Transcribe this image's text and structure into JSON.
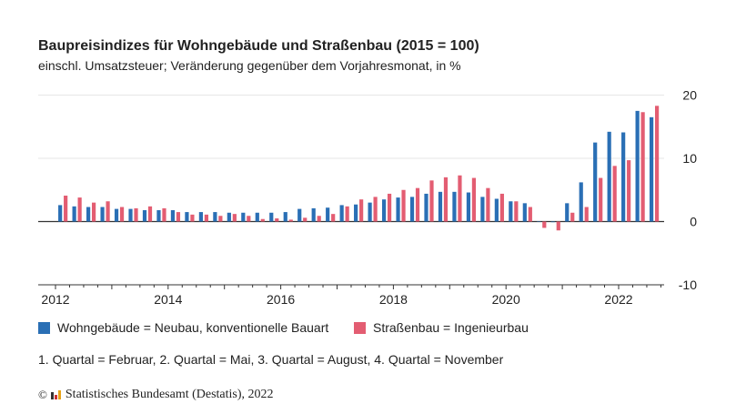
{
  "title": "Baupreisindizes für Wohngebäude und Straßenbau (2015 = 100)",
  "subtitle": "einschl. Umsatzsteuer; Veränderung gegenüber dem Vorjahresmonat, in %",
  "note": "1. Quartal = Februar, 2. Quartal = Mai, 3. Quartal = August, 4. Quartal = November",
  "source": {
    "copyright": "©",
    "text": "Statistisches Bundesamt (Destatis), 2022"
  },
  "chart_data": {
    "type": "bar",
    "xlabel": "",
    "ylabel": "",
    "ylim": [
      -10,
      20
    ],
    "yticks": [
      20,
      10,
      0,
      -10
    ],
    "xticks": [
      "2012",
      "2014",
      "2016",
      "2018",
      "2020",
      "2022"
    ],
    "grid": true,
    "legend_position": "bottom",
    "first_period": "2012 Q1",
    "last_period": "2022 Q3",
    "categories": [
      "2012 Q1",
      "2012 Q2",
      "2012 Q3",
      "2012 Q4",
      "2013 Q1",
      "2013 Q2",
      "2013 Q3",
      "2013 Q4",
      "2014 Q1",
      "2014 Q2",
      "2014 Q3",
      "2014 Q4",
      "2015 Q1",
      "2015 Q2",
      "2015 Q3",
      "2015 Q4",
      "2016 Q1",
      "2016 Q2",
      "2016 Q3",
      "2016 Q4",
      "2017 Q1",
      "2017 Q2",
      "2017 Q3",
      "2017 Q4",
      "2018 Q1",
      "2018 Q2",
      "2018 Q3",
      "2018 Q4",
      "2019 Q1",
      "2019 Q2",
      "2019 Q3",
      "2019 Q4",
      "2020 Q1",
      "2020 Q2",
      "2020 Q3",
      "2020 Q4",
      "2021 Q1",
      "2021 Q2",
      "2021 Q3",
      "2021 Q4",
      "2022 Q1",
      "2022 Q2",
      "2022 Q3"
    ],
    "series": [
      {
        "name": "Wohngebäude = Neubau, konventionelle Bauart",
        "color": "#2a6fb5",
        "values": [
          2.6,
          2.4,
          2.3,
          2.3,
          2.0,
          2.0,
          1.8,
          1.8,
          1.8,
          1.5,
          1.5,
          1.5,
          1.4,
          1.4,
          1.4,
          1.4,
          1.5,
          2.0,
          2.1,
          2.2,
          2.6,
          2.7,
          3.0,
          3.5,
          3.8,
          3.9,
          4.4,
          4.7,
          4.7,
          4.6,
          3.9,
          3.6,
          3.2,
          2.9,
          0.0,
          -0.1,
          2.9,
          6.2,
          12.5,
          14.2,
          14.1,
          17.5,
          16.5
        ]
      },
      {
        "name": "Straßenbau = Ingenieurbau",
        "color": "#e35d72",
        "values": [
          4.1,
          3.8,
          3.0,
          3.2,
          2.3,
          2.1,
          2.4,
          2.1,
          1.5,
          1.1,
          1.1,
          0.9,
          1.2,
          0.9,
          0.4,
          0.5,
          0.3,
          0.6,
          0.9,
          1.2,
          2.4,
          3.5,
          3.9,
          4.4,
          5.0,
          5.3,
          6.5,
          7.0,
          7.3,
          6.9,
          5.3,
          4.4,
          3.2,
          2.3,
          -1.0,
          -1.4,
          1.4,
          2.3,
          6.9,
          8.8,
          9.7,
          17.3,
          18.3
        ]
      }
    ]
  }
}
